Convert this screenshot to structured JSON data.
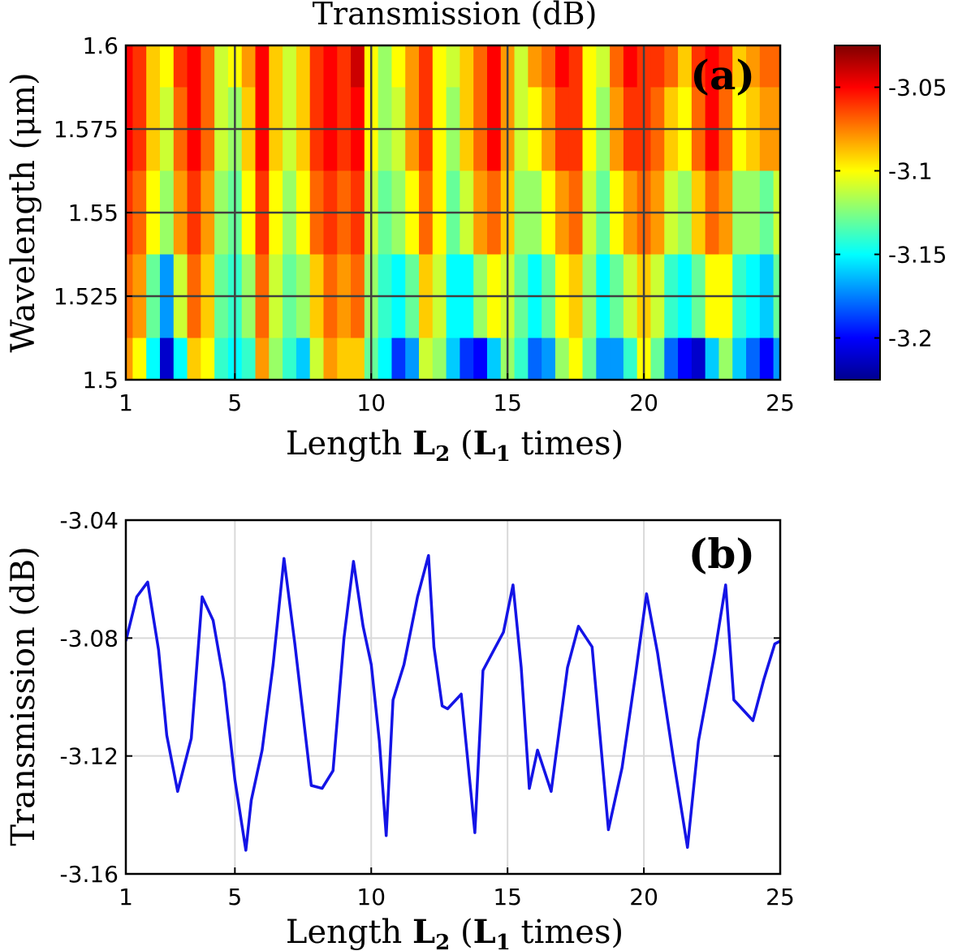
{
  "chart_data": [
    {
      "type": "heatmap",
      "panel_label": "(a)",
      "title": "Transmission  (dB)",
      "xlabel": {
        "text": "Length ",
        "bold": "L",
        "bold_sub": "2",
        "mid": " (",
        "bold2": "L",
        "bold2_sub": "1",
        "tail": " times)"
      },
      "ylabel": "Wavelength (μm)",
      "xlim": [
        1,
        25
      ],
      "ylim": [
        1.5,
        1.6
      ],
      "xticks": [
        1,
        5,
        10,
        15,
        20,
        25
      ],
      "xtick_labels": [
        "1",
        "5",
        "10",
        "15",
        "20",
        "25"
      ],
      "yticks": [
        1.5,
        1.525,
        1.55,
        1.575,
        1.6
      ],
      "ytick_labels": [
        "1.5",
        "1.525",
        "1.55",
        "1.575",
        "1.6"
      ],
      "grid": true,
      "colormap": "jet",
      "clim": [
        -3.225,
        -3.025
      ],
      "colorbar": {
        "ticks": [
          -3.05,
          -3.1,
          -3.15,
          -3.2
        ],
        "tick_labels": [
          "-3.05",
          "-3.1",
          "-3.15",
          "-3.2"
        ]
      },
      "x": [
        1,
        1.5,
        2,
        2.5,
        3,
        3.5,
        4,
        4.5,
        5,
        5.5,
        6,
        6.5,
        7,
        7.5,
        8,
        8.5,
        9,
        9.5,
        10,
        10.5,
        11,
        11.5,
        12,
        12.5,
        13,
        13.5,
        14,
        14.5,
        15,
        15.5,
        16,
        16.5,
        17,
        17.5,
        18,
        18.5,
        19,
        19.5,
        20,
        20.5,
        21,
        21.5,
        22,
        22.5,
        23,
        23.5,
        24,
        24.5,
        25
      ],
      "y": [
        1.6,
        1.575,
        1.55,
        1.525,
        1.5
      ],
      "z": [
        [
          -3.05,
          -3.06,
          -3.09,
          -3.1,
          -3.06,
          -3.05,
          -3.07,
          -3.11,
          -3.1,
          -3.08,
          -3.05,
          -3.09,
          -3.11,
          -3.09,
          -3.06,
          -3.05,
          -3.06,
          -3.04,
          -3.1,
          -3.12,
          -3.1,
          -3.08,
          -3.06,
          -3.1,
          -3.11,
          -3.09,
          -3.07,
          -3.05,
          -3.08,
          -3.11,
          -3.08,
          -3.07,
          -3.05,
          -3.06,
          -3.1,
          -3.11,
          -3.07,
          -3.05,
          -3.06,
          -3.06,
          -3.07,
          -3.09,
          -3.06,
          -3.05,
          -3.06,
          -3.09,
          -3.08,
          -3.07,
          -3.07
        ],
        [
          -3.05,
          -3.06,
          -3.09,
          -3.11,
          -3.07,
          -3.05,
          -3.07,
          -3.11,
          -3.12,
          -3.09,
          -3.05,
          -3.09,
          -3.11,
          -3.09,
          -3.06,
          -3.05,
          -3.06,
          -3.05,
          -3.1,
          -3.12,
          -3.11,
          -3.08,
          -3.06,
          -3.1,
          -3.12,
          -3.09,
          -3.07,
          -3.05,
          -3.08,
          -3.11,
          -3.1,
          -3.08,
          -3.06,
          -3.06,
          -3.1,
          -3.12,
          -3.08,
          -3.06,
          -3.06,
          -3.07,
          -3.09,
          -3.1,
          -3.07,
          -3.05,
          -3.07,
          -3.1,
          -3.09,
          -3.08,
          -3.08
        ],
        [
          -3.06,
          -3.07,
          -3.1,
          -3.12,
          -3.08,
          -3.06,
          -3.08,
          -3.12,
          -3.13,
          -3.1,
          -3.06,
          -3.1,
          -3.12,
          -3.1,
          -3.07,
          -3.06,
          -3.07,
          -3.06,
          -3.11,
          -3.13,
          -3.12,
          -3.1,
          -3.07,
          -3.1,
          -3.13,
          -3.11,
          -3.08,
          -3.07,
          -3.09,
          -3.12,
          -3.12,
          -3.1,
          -3.08,
          -3.07,
          -3.11,
          -3.13,
          -3.1,
          -3.08,
          -3.07,
          -3.08,
          -3.11,
          -3.12,
          -3.09,
          -3.07,
          -3.08,
          -3.12,
          -3.12,
          -3.13,
          -3.11
        ],
        [
          -3.07,
          -3.08,
          -3.13,
          -3.17,
          -3.11,
          -3.07,
          -3.09,
          -3.13,
          -3.14,
          -3.12,
          -3.07,
          -3.11,
          -3.13,
          -3.12,
          -3.09,
          -3.07,
          -3.08,
          -3.07,
          -3.12,
          -3.14,
          -3.15,
          -3.13,
          -3.09,
          -3.11,
          -3.15,
          -3.15,
          -3.12,
          -3.1,
          -3.11,
          -3.13,
          -3.15,
          -3.13,
          -3.1,
          -3.09,
          -3.12,
          -3.15,
          -3.13,
          -3.11,
          -3.09,
          -3.11,
          -3.14,
          -3.15,
          -3.13,
          -3.1,
          -3.1,
          -3.14,
          -3.15,
          -3.16,
          -3.13
        ],
        [
          -3.08,
          -3.1,
          -3.15,
          -3.21,
          -3.15,
          -3.09,
          -3.1,
          -3.14,
          -3.15,
          -3.14,
          -3.08,
          -3.12,
          -3.14,
          -3.16,
          -3.11,
          -3.08,
          -3.09,
          -3.09,
          -3.13,
          -3.15,
          -3.19,
          -3.17,
          -3.11,
          -3.12,
          -3.16,
          -3.19,
          -3.2,
          -3.16,
          -3.12,
          -3.14,
          -3.18,
          -3.17,
          -3.12,
          -3.1,
          -3.13,
          -3.17,
          -3.17,
          -3.14,
          -3.1,
          -3.13,
          -3.18,
          -3.2,
          -3.21,
          -3.16,
          -3.12,
          -3.16,
          -3.18,
          -3.2,
          -3.17
        ]
      ]
    },
    {
      "type": "line",
      "panel_label": "(b)",
      "xlabel": {
        "text": "Length ",
        "bold": "L",
        "bold_sub": "2",
        "mid": " (",
        "bold2": "L",
        "bold2_sub": "1",
        "tail": " times)"
      },
      "ylabel": "Transmission  (dB)",
      "xlim": [
        1,
        25
      ],
      "ylim": [
        -3.16,
        -3.04
      ],
      "xticks": [
        1,
        5,
        10,
        15,
        20,
        25
      ],
      "xtick_labels": [
        "1",
        "5",
        "10",
        "15",
        "20",
        "25"
      ],
      "yticks": [
        -3.04,
        -3.08,
        -3.12,
        -3.16
      ],
      "ytick_labels": [
        "-3.04",
        "-3.08",
        "-3.12",
        "-3.16"
      ],
      "grid": true,
      "line_color": "#1414e6",
      "series": [
        {
          "x": [
            1,
            1.4,
            1.8,
            2.2,
            2.5,
            2.9,
            3.4,
            3.8,
            4.2,
            4.6,
            5.0,
            5.4,
            5.6,
            6.0,
            6.4,
            6.8,
            7.2,
            7.8,
            8.2,
            8.6,
            9.0,
            9.35,
            9.7,
            10.0,
            10.3,
            10.55,
            10.8,
            11.2,
            11.7,
            12.1,
            12.3,
            12.6,
            12.8,
            13.3,
            13.8,
            14.1,
            14.5,
            14.85,
            15.2,
            15.5,
            15.8,
            16.1,
            16.6,
            17.2,
            17.6,
            18.1,
            18.7,
            19.2,
            19.7,
            20.1,
            20.5,
            21.1,
            21.6,
            22.0,
            22.6,
            23.0,
            23.3,
            23.6,
            24.0,
            24.4,
            24.8,
            25
          ],
          "y": [
            -3.081,
            -3.066,
            -3.061,
            -3.084,
            -3.113,
            -3.132,
            -3.114,
            -3.066,
            -3.074,
            -3.095,
            -3.128,
            -3.152,
            -3.135,
            -3.118,
            -3.089,
            -3.053,
            -3.082,
            -3.13,
            -3.131,
            -3.125,
            -3.08,
            -3.054,
            -3.076,
            -3.089,
            -3.115,
            -3.147,
            -3.101,
            -3.089,
            -3.066,
            -3.052,
            -3.083,
            -3.103,
            -3.104,
            -3.099,
            -3.146,
            -3.091,
            -3.084,
            -3.078,
            -3.062,
            -3.09,
            -3.131,
            -3.118,
            -3.132,
            -3.09,
            -3.076,
            -3.083,
            -3.145,
            -3.124,
            -3.092,
            -3.065,
            -3.085,
            -3.122,
            -3.151,
            -3.115,
            -3.085,
            -3.062,
            -3.101,
            -3.104,
            -3.108,
            -3.094,
            -3.082,
            -3.081
          ]
        }
      ]
    }
  ]
}
